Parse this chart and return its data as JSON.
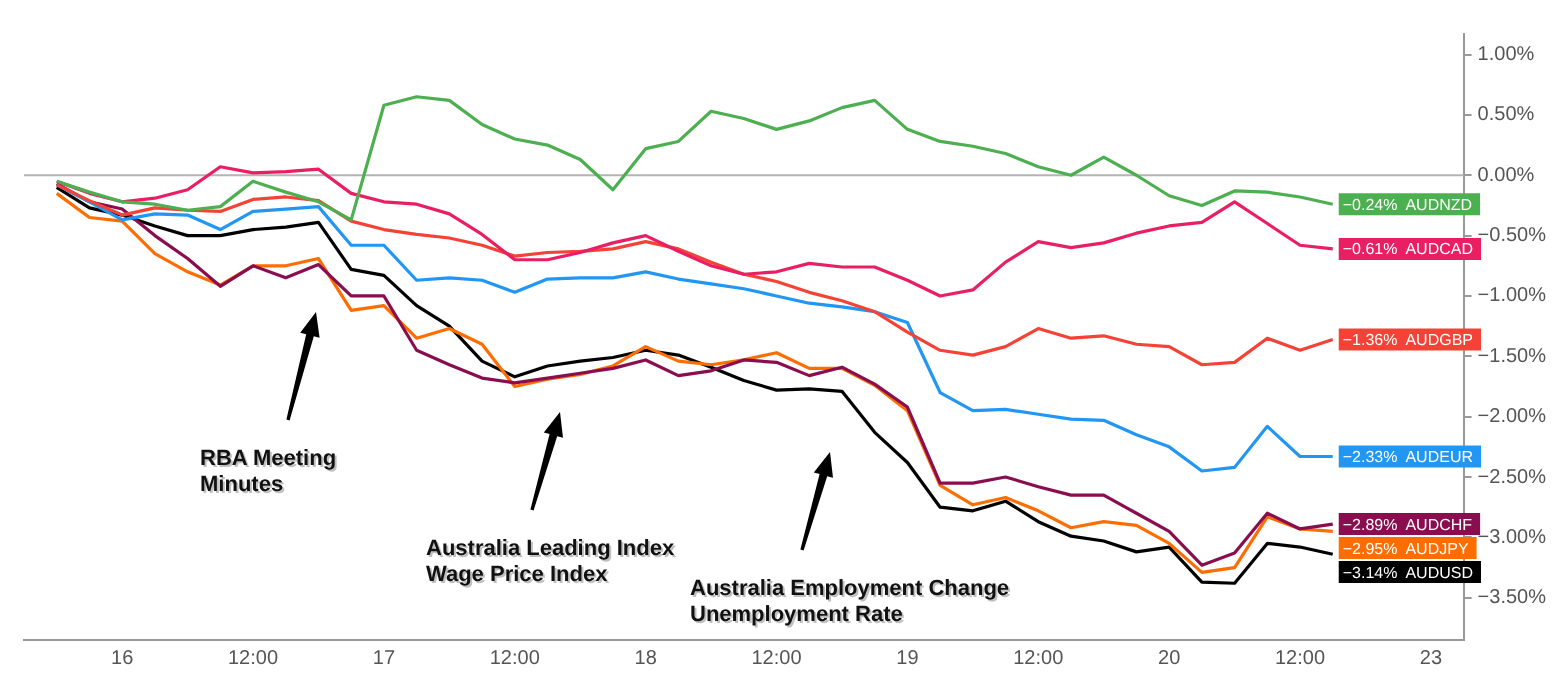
{
  "chart_data": {
    "type": "line",
    "categories": [
      null,
      null,
      null,
      "16",
      null,
      null,
      null,
      "12:00",
      null,
      null,
      null,
      "17",
      null,
      null,
      null,
      "12:00",
      null,
      null,
      null,
      "18",
      null,
      null,
      null,
      "12:00",
      null,
      null,
      null,
      "19",
      null,
      null,
      null,
      "12:00",
      null,
      null,
      null,
      "20",
      null,
      null,
      null,
      "12:00",
      null,
      null,
      null,
      "23",
      null
    ],
    "ylim": [
      -3.85,
      1.17
    ],
    "yticks": [
      {
        "value": 1,
        "label": "1.00%"
      },
      {
        "value": 0.5,
        "label": "0.50%"
      },
      {
        "value": 0,
        "label": "0.00%"
      },
      {
        "value": -0.5,
        "label": "−0.50%"
      },
      {
        "value": -1,
        "label": "−1.00%"
      },
      {
        "value": -1.5,
        "label": "−1.50%"
      },
      {
        "value": -2,
        "label": "−2.00%"
      },
      {
        "value": -2.5,
        "label": "−2.50%"
      },
      {
        "value": -3,
        "label": "−3.00%"
      },
      {
        "value": -3.5,
        "label": "−3.50%"
      }
    ],
    "grid": false,
    "legend": false,
    "marker": "none",
    "line_style": "solid",
    "ref_lines": [
      {
        "axis": "y",
        "value": 0,
        "color": "#b4b4b4",
        "line_style": "solid"
      }
    ],
    "annotations": [
      "RBA Meeting\nMinutes",
      "Australia Leading Index\nWage Price Index",
      "Australia Employment Change\nUnemployment Rate"
    ],
    "series": [
      {
        "name": "AUDNZD",
        "color": "#4caf50",
        "values": [
          null,
          -0.05,
          -0.14,
          -0.22,
          -0.24,
          -0.29,
          -0.26,
          -0.05,
          -0.14,
          -0.22,
          -0.37,
          0.58,
          0.65,
          0.62,
          0.42,
          0.3,
          0.25,
          0.13,
          -0.12,
          0.22,
          0.28,
          0.53,
          0.47,
          0.38,
          0.45,
          0.56,
          0.62,
          0.38,
          0.28,
          0.24,
          0.18,
          0.07,
          0.0,
          0.15,
          0.0,
          -0.17,
          -0.25,
          -0.13,
          -0.14,
          -0.18,
          -0.24,
          null,
          null,
          null,
          null
        ],
        "value_labels": [
          null,
          null,
          null,
          null,
          null,
          null,
          null,
          null,
          null,
          null,
          null,
          null,
          null,
          null,
          null,
          null,
          null,
          null,
          null,
          null,
          null,
          null,
          null,
          null,
          null,
          null,
          null,
          null,
          null,
          null,
          null,
          null,
          null,
          null,
          null,
          null,
          null,
          null,
          null,
          null,
          "−0.24%",
          null,
          null,
          null,
          null
        ]
      },
      {
        "name": "AUDCAD",
        "color": "#e91e63",
        "values": [
          null,
          -0.05,
          -0.15,
          -0.22,
          -0.19,
          -0.12,
          0.07,
          0.02,
          0.03,
          0.05,
          -0.15,
          -0.22,
          -0.24,
          -0.32,
          -0.49,
          -0.7,
          -0.7,
          -0.64,
          -0.56,
          -0.5,
          -0.63,
          -0.75,
          -0.82,
          -0.8,
          -0.73,
          -0.76,
          -0.76,
          -0.87,
          -1.0,
          -0.95,
          -0.72,
          -0.55,
          -0.6,
          -0.56,
          -0.48,
          -0.42,
          -0.39,
          -0.22,
          -0.4,
          -0.58,
          -0.61,
          null,
          null,
          null,
          null
        ],
        "value_labels": [
          null,
          null,
          null,
          null,
          null,
          null,
          null,
          null,
          null,
          null,
          null,
          null,
          null,
          null,
          null,
          null,
          null,
          null,
          null,
          null,
          null,
          null,
          null,
          null,
          null,
          null,
          null,
          null,
          null,
          null,
          null,
          null,
          null,
          null,
          null,
          null,
          null,
          null,
          null,
          null,
          "−0.61%",
          null,
          null,
          null,
          null
        ]
      },
      {
        "name": "AUDGBP",
        "color": "#f44336",
        "values": [
          null,
          -0.08,
          -0.21,
          -0.33,
          -0.27,
          -0.29,
          -0.3,
          -0.2,
          -0.18,
          -0.21,
          -0.38,
          -0.45,
          -0.49,
          -0.52,
          -0.58,
          -0.67,
          -0.64,
          -0.63,
          -0.61,
          -0.55,
          -0.61,
          -0.72,
          -0.82,
          -0.88,
          -0.97,
          -1.04,
          -1.13,
          -1.3,
          -1.45,
          -1.49,
          -1.42,
          -1.27,
          -1.35,
          -1.33,
          -1.4,
          -1.42,
          -1.57,
          -1.55,
          -1.35,
          -1.45,
          -1.36,
          null,
          null,
          null,
          null
        ],
        "value_labels": [
          null,
          null,
          null,
          null,
          null,
          null,
          null,
          null,
          null,
          null,
          null,
          null,
          null,
          null,
          null,
          null,
          null,
          null,
          null,
          null,
          null,
          null,
          null,
          null,
          null,
          null,
          null,
          null,
          null,
          null,
          null,
          null,
          null,
          null,
          null,
          null,
          null,
          null,
          null,
          null,
          "−1.36%",
          null,
          null,
          null,
          null
        ]
      },
      {
        "name": "AUDEUR",
        "color": "#2196f3",
        "values": [
          null,
          -0.08,
          -0.22,
          -0.37,
          -0.32,
          -0.33,
          -0.45,
          -0.3,
          -0.28,
          -0.26,
          -0.58,
          -0.58,
          -0.87,
          -0.85,
          -0.87,
          -0.97,
          -0.86,
          -0.85,
          -0.85,
          -0.8,
          -0.86,
          -0.9,
          -0.94,
          -1.0,
          -1.06,
          -1.09,
          -1.13,
          -1.22,
          -1.8,
          -1.95,
          -1.94,
          -1.98,
          -2.02,
          -2.03,
          -2.15,
          -2.25,
          -2.45,
          -2.42,
          -2.08,
          -2.33,
          -2.33,
          null,
          null,
          null,
          null
        ],
        "value_labels": [
          null,
          null,
          null,
          null,
          null,
          null,
          null,
          null,
          null,
          null,
          null,
          null,
          null,
          null,
          null,
          null,
          null,
          null,
          null,
          null,
          null,
          null,
          null,
          null,
          null,
          null,
          null,
          null,
          null,
          null,
          null,
          null,
          null,
          null,
          null,
          null,
          null,
          null,
          null,
          null,
          "−2.33%",
          null,
          null,
          null,
          null
        ]
      },
      {
        "name": "AUDCHF",
        "color": "#880e4f",
        "values": [
          null,
          -0.07,
          -0.22,
          -0.28,
          -0.5,
          -0.69,
          -0.92,
          -0.75,
          -0.85,
          -0.74,
          -1.0,
          -1.0,
          -1.45,
          -1.57,
          -1.68,
          -1.72,
          -1.68,
          -1.64,
          -1.6,
          -1.53,
          -1.66,
          -1.62,
          -1.53,
          -1.55,
          -1.66,
          -1.59,
          -1.73,
          -1.92,
          -2.55,
          -2.55,
          -2.5,
          -2.58,
          -2.65,
          -2.65,
          -2.8,
          -2.95,
          -3.23,
          -3.13,
          -2.8,
          -2.93,
          -2.89,
          null,
          null,
          null,
          null
        ],
        "value_labels": [
          null,
          null,
          null,
          null,
          null,
          null,
          null,
          null,
          null,
          null,
          null,
          null,
          null,
          null,
          null,
          null,
          null,
          null,
          null,
          null,
          null,
          null,
          null,
          null,
          null,
          null,
          null,
          null,
          null,
          null,
          null,
          null,
          null,
          null,
          null,
          null,
          null,
          null,
          null,
          null,
          "−2.89%",
          null,
          null,
          null,
          null
        ]
      },
      {
        "name": "AUDJPY",
        "color": "#ff6d00",
        "values": [
          null,
          -0.15,
          -0.35,
          -0.38,
          -0.65,
          -0.8,
          -0.91,
          -0.75,
          -0.75,
          -0.69,
          -1.12,
          -1.08,
          -1.35,
          -1.27,
          -1.4,
          -1.75,
          -1.69,
          -1.65,
          -1.58,
          -1.42,
          -1.54,
          -1.57,
          -1.53,
          -1.47,
          -1.6,
          -1.6,
          -1.74,
          -1.95,
          -2.57,
          -2.73,
          -2.67,
          -2.78,
          -2.92,
          -2.87,
          -2.9,
          -3.05,
          -3.29,
          -3.25,
          -2.83,
          -2.93,
          -2.95,
          null,
          null,
          null,
          null
        ],
        "value_labels": [
          null,
          null,
          null,
          null,
          null,
          null,
          null,
          null,
          null,
          null,
          null,
          null,
          null,
          null,
          null,
          null,
          null,
          null,
          null,
          null,
          null,
          null,
          null,
          null,
          null,
          null,
          null,
          null,
          null,
          null,
          null,
          null,
          null,
          null,
          null,
          null,
          null,
          null,
          null,
          null,
          "−2.95%",
          null,
          null,
          null,
          null
        ]
      },
      {
        "name": "AUDUSD",
        "color": "#000000",
        "values": [
          null,
          -0.1,
          -0.27,
          -0.33,
          -0.42,
          -0.5,
          -0.5,
          -0.45,
          -0.43,
          -0.39,
          -0.78,
          -0.83,
          -1.08,
          -1.25,
          -1.54,
          -1.67,
          -1.58,
          -1.54,
          -1.51,
          -1.45,
          -1.49,
          -1.59,
          -1.7,
          -1.78,
          -1.77,
          -1.79,
          -2.13,
          -2.38,
          -2.75,
          -2.78,
          -2.7,
          -2.87,
          -2.99,
          -3.03,
          -3.12,
          -3.08,
          -3.37,
          -3.38,
          -3.05,
          -3.08,
          -3.14,
          null,
          null,
          null,
          null
        ],
        "value_labels": [
          null,
          null,
          null,
          null,
          null,
          null,
          null,
          null,
          null,
          null,
          null,
          null,
          null,
          null,
          null,
          null,
          null,
          null,
          null,
          null,
          null,
          null,
          null,
          null,
          null,
          null,
          null,
          null,
          null,
          null,
          null,
          null,
          null,
          null,
          null,
          null,
          null,
          null,
          null,
          null,
          "−3.14%",
          null,
          null,
          null,
          null
        ]
      }
    ]
  }
}
